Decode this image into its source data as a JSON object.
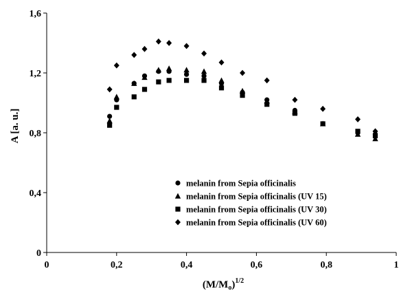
{
  "chart_data": {
    "type": "scatter",
    "title": "",
    "ylabel": "A [a. u.]",
    "xlabel_main": "(M/M",
    "xlabel_sub": "o",
    "xlabel_close": ")",
    "xlabel_sup": "1/2",
    "xlim": [
      0,
      1
    ],
    "ylim": [
      0,
      1.6
    ],
    "x_ticks": [
      "0",
      "0,2",
      "0,4",
      "0,6",
      "0,8",
      "1"
    ],
    "y_ticks": [
      "0",
      "0,4",
      "0,8",
      "1,2",
      "1,6"
    ],
    "grid": false,
    "legend_position": "bottom-right",
    "series": [
      {
        "name": "melanin from Sepia officinalis",
        "marker": "circle",
        "x": [
          0.18,
          0.2,
          0.25,
          0.28,
          0.32,
          0.35,
          0.4,
          0.45,
          0.5,
          0.56,
          0.63,
          0.71,
          0.79,
          0.89,
          0.94
        ],
        "y": [
          0.91,
          1.02,
          1.13,
          1.18,
          1.21,
          1.21,
          1.19,
          1.18,
          1.13,
          1.07,
          1.02,
          0.95,
          0.86,
          0.8,
          0.79
        ]
      },
      {
        "name": "melanin from Sepia officinalis (UV 15)",
        "marker": "triangle",
        "x": [
          0.18,
          0.2,
          0.25,
          0.28,
          0.32,
          0.35,
          0.4,
          0.45,
          0.5,
          0.56,
          0.63,
          0.71,
          0.79,
          0.89,
          0.94
        ],
        "y": [
          0.88,
          1.04,
          1.13,
          1.17,
          1.22,
          1.23,
          1.22,
          1.21,
          1.15,
          1.08,
          1.01,
          0.94,
          0.86,
          0.79,
          0.76
        ]
      },
      {
        "name": "melanin from Sepia officinalis (UV 30)",
        "marker": "square",
        "x": [
          0.18,
          0.2,
          0.25,
          0.28,
          0.32,
          0.35,
          0.4,
          0.45,
          0.5,
          0.56,
          0.63,
          0.71,
          0.79,
          0.89,
          0.94
        ],
        "y": [
          0.85,
          0.97,
          1.04,
          1.09,
          1.14,
          1.15,
          1.15,
          1.15,
          1.1,
          1.05,
          0.99,
          0.93,
          0.86,
          0.81,
          0.78
        ]
      },
      {
        "name": "melanin from Sepia officinalis (UV 60)",
        "marker": "diamond",
        "x": [
          0.18,
          0.2,
          0.25,
          0.28,
          0.32,
          0.35,
          0.4,
          0.45,
          0.5,
          0.56,
          0.63,
          0.71,
          0.79,
          0.89,
          0.94
        ],
        "y": [
          1.09,
          1.25,
          1.32,
          1.36,
          1.41,
          1.4,
          1.38,
          1.33,
          1.27,
          1.2,
          1.15,
          1.02,
          0.96,
          0.89,
          0.81
        ]
      }
    ]
  }
}
